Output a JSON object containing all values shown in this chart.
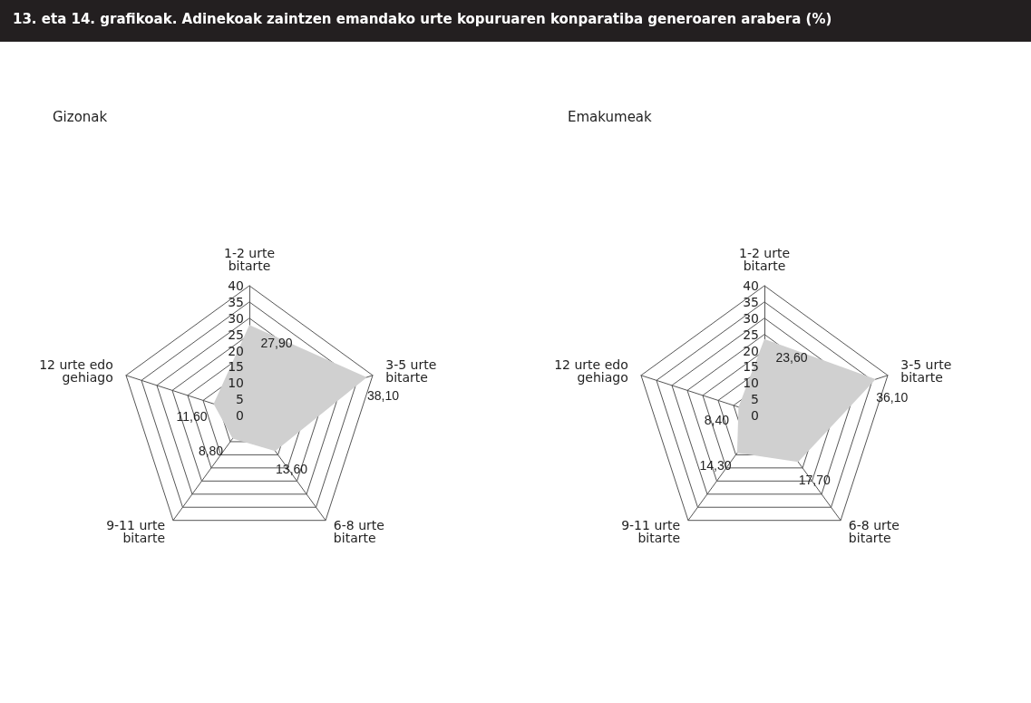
{
  "chart_data": [
    {
      "type": "radar",
      "title": "13. eta 14. grafikoak. Adinekoak zaintzen emandako urte kopuruaren konparatiba generoaren arabera (%)",
      "subtitle": "Gizonak",
      "categories": [
        "1-2 urte bitarte",
        "3-5 urte bitarte",
        "6-8 urte bitarte",
        "9-11 urte bitarte",
        "12 urte edo gehiago"
      ],
      "ylim": [
        0,
        40
      ],
      "yticks": [
        0,
        5,
        10,
        15,
        20,
        25,
        30,
        35,
        40
      ],
      "series": [
        {
          "color": "#d0d0d0",
          "values": [
            27.9,
            38.1,
            13.6,
            8.8,
            11.6
          ],
          "value_labels": [
            "27,90",
            "38,10",
            "13,60",
            "8,80",
            "11,60"
          ]
        }
      ],
      "marker": "none"
    },
    {
      "type": "radar",
      "subtitle": "Emakumeak",
      "categories": [
        "1-2 urte bitarte",
        "3-5 urte bitarte",
        "6-8 urte bitarte",
        "9-11 urte bitarte",
        "12 urte edo gehiago"
      ],
      "ylim": [
        0,
        40
      ],
      "yticks": [
        0,
        5,
        10,
        15,
        20,
        25,
        30,
        35,
        40
      ],
      "series": [
        {
          "color": "#d0d0d0",
          "values": [
            23.6,
            36.1,
            17.7,
            14.3,
            8.4
          ],
          "value_labels": [
            "23,60",
            "36,10",
            "17,70",
            "14,30",
            "8,40"
          ]
        }
      ],
      "marker": "none"
    }
  ]
}
